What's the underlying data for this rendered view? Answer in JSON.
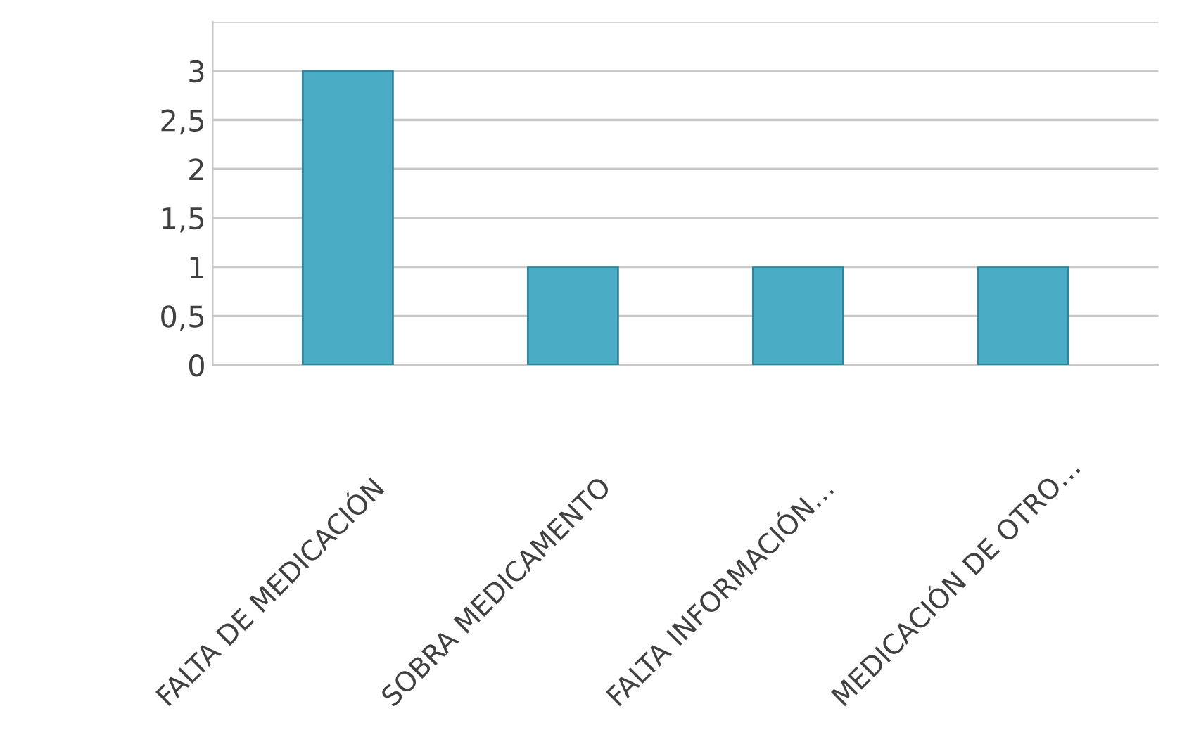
{
  "chart_data": {
    "type": "bar",
    "categories": [
      "FALTA DE MEDICACIÓN",
      "SOBRA MEDICAMENTO",
      "FALTA INFORMACIÓN…",
      "MEDICACIÓN DE OTRO…"
    ],
    "values": [
      3,
      1,
      1,
      1
    ],
    "color": "#4bacc6",
    "ylim": [
      0,
      3.5
    ],
    "yticks": [
      0,
      {
        "value": 0.5,
        "label": "0,5"
      },
      1,
      {
        "value": 1.5,
        "label": "1,5"
      },
      2,
      {
        "value": 2.5,
        "label": "2,5"
      },
      3,
      {
        "value": 3.5,
        "label": null
      }
    ],
    "grid": "y"
  }
}
